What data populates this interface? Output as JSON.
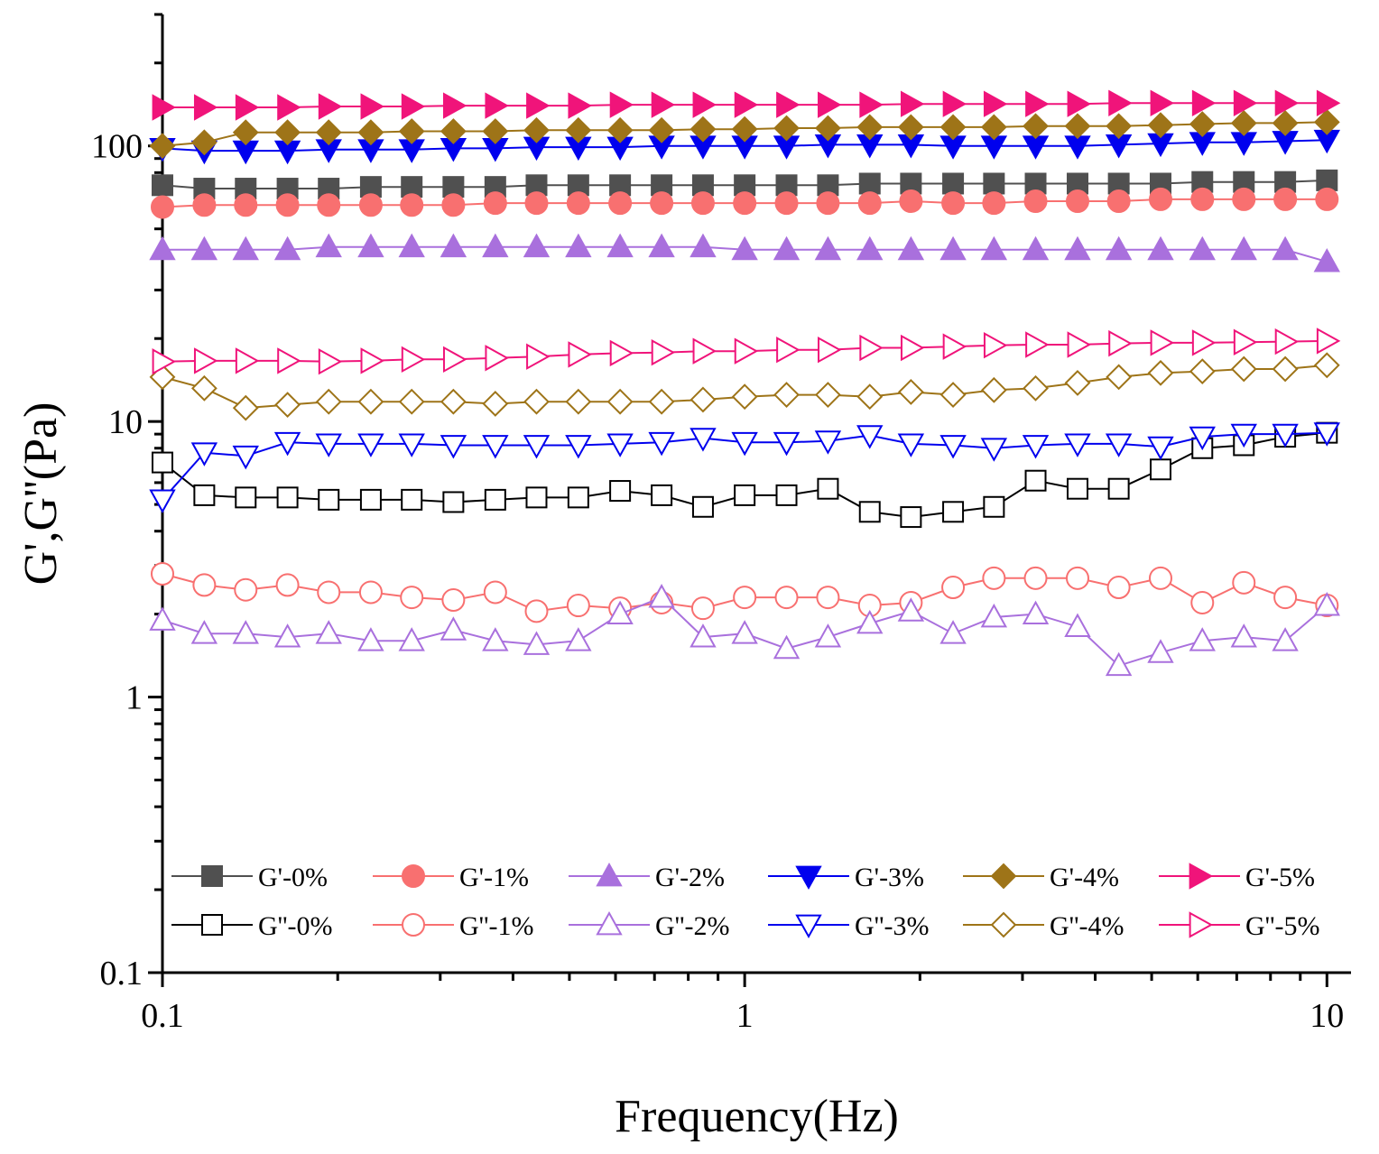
{
  "chart_data": {
    "type": "line",
    "title": "",
    "xlabel": "Frequency(Hz)",
    "ylabel": "G',G''(Pa)",
    "xscale": "log",
    "yscale": "log",
    "xlim": [
      0.1,
      11
    ],
    "ylim": [
      0.1,
      300
    ],
    "x_ticks": [
      {
        "value": 0.1,
        "label": "0.1"
      },
      {
        "value": 1,
        "label": "1"
      },
      {
        "value": 10,
        "label": "10"
      }
    ],
    "y_ticks": [
      {
        "value": 0.1,
        "label": "0.1"
      },
      {
        "value": 1,
        "label": "1"
      },
      {
        "value": 10,
        "label": "10"
      },
      {
        "value": 100,
        "label": "100"
      }
    ],
    "x": [
      0.1,
      0.118,
      0.139,
      0.164,
      0.193,
      0.228,
      0.268,
      0.316,
      0.373,
      0.439,
      0.518,
      0.611,
      0.72,
      0.848,
      1.0,
      1.18,
      1.39,
      1.64,
      1.93,
      2.28,
      2.68,
      3.16,
      3.73,
      4.39,
      5.18,
      6.11,
      7.2,
      8.48,
      10.0
    ],
    "legend": {
      "position": "bottom",
      "columns": 6
    },
    "series": [
      {
        "name": "G'-0%",
        "marker": "square",
        "filled": true,
        "color": "#505050",
        "values": [
          72,
          70,
          70,
          70,
          70,
          71,
          71,
          71,
          71,
          72,
          72,
          72,
          72,
          72,
          72,
          72,
          72,
          73,
          73,
          73,
          73,
          73,
          73,
          73,
          73,
          74,
          74,
          74,
          75
        ]
      },
      {
        "name": "G''-0%",
        "marker": "square",
        "filled": false,
        "color": "#000000",
        "values": [
          7.1,
          5.4,
          5.3,
          5.3,
          5.2,
          5.2,
          5.2,
          5.1,
          5.2,
          5.3,
          5.3,
          5.6,
          5.4,
          4.9,
          5.4,
          5.4,
          5.7,
          4.7,
          4.5,
          4.7,
          4.9,
          6.1,
          5.7,
          5.7,
          6.7,
          8.0,
          8.2,
          8.8,
          9.1
        ]
      },
      {
        "name": "G'-1%",
        "marker": "circle",
        "filled": true,
        "color": "#F87070",
        "values": [
          60,
          61,
          61,
          61,
          61,
          61,
          61,
          61,
          62,
          62,
          62,
          62,
          62,
          62,
          62,
          62,
          62,
          62,
          63,
          62,
          62,
          63,
          63,
          63,
          64,
          64,
          64,
          64,
          64
        ]
      },
      {
        "name": "G''-1%",
        "marker": "circle",
        "filled": false,
        "color": "#F87070",
        "values": [
          2.8,
          2.55,
          2.45,
          2.55,
          2.4,
          2.4,
          2.3,
          2.25,
          2.4,
          2.05,
          2.15,
          2.1,
          2.2,
          2.1,
          2.3,
          2.3,
          2.3,
          2.15,
          2.2,
          2.5,
          2.7,
          2.7,
          2.7,
          2.5,
          2.7,
          2.2,
          2.6,
          2.3,
          2.15
        ]
      },
      {
        "name": "G'-2%",
        "marker": "triangle-up",
        "filled": true,
        "color": "#A970DD",
        "values": [
          42,
          42,
          42,
          42,
          43,
          43,
          43,
          43,
          43,
          43,
          43,
          43,
          43,
          43,
          42,
          42,
          42,
          42,
          42,
          42,
          42,
          42,
          42,
          42,
          42,
          42,
          42,
          42,
          38
        ]
      },
      {
        "name": "G''-2%",
        "marker": "triangle-up",
        "filled": false,
        "color": "#A970DD",
        "values": [
          1.9,
          1.7,
          1.7,
          1.65,
          1.7,
          1.6,
          1.6,
          1.75,
          1.6,
          1.55,
          1.6,
          2.0,
          2.3,
          1.65,
          1.7,
          1.5,
          1.65,
          1.85,
          2.05,
          1.7,
          1.95,
          2.0,
          1.8,
          1.3,
          1.45,
          1.6,
          1.65,
          1.6,
          2.15
        ]
      },
      {
        "name": "G'-3%",
        "marker": "triangle-down",
        "filled": true,
        "color": "#0000EE",
        "values": [
          98,
          96,
          96,
          96,
          97,
          97,
          97,
          98,
          98,
          99,
          99,
          99,
          100,
          100,
          100,
          100,
          101,
          101,
          101,
          100,
          100,
          100,
          100,
          101,
          102,
          103,
          103,
          104,
          105
        ]
      },
      {
        "name": "G''-3%",
        "marker": "triangle-down",
        "filled": false,
        "color": "#0000EE",
        "values": [
          5.2,
          7.7,
          7.5,
          8.4,
          8.3,
          8.3,
          8.3,
          8.2,
          8.2,
          8.2,
          8.2,
          8.3,
          8.4,
          8.7,
          8.4,
          8.4,
          8.5,
          8.9,
          8.3,
          8.2,
          8.0,
          8.2,
          8.3,
          8.3,
          8.1,
          8.8,
          9.0,
          9.0,
          9.1
        ]
      },
      {
        "name": "G'-4%",
        "marker": "diamond",
        "filled": true,
        "color": "#9E7418",
        "values": [
          100,
          103,
          112,
          112,
          112,
          112,
          113,
          113,
          113,
          114,
          114,
          114,
          114,
          115,
          115,
          116,
          116,
          117,
          117,
          117,
          117,
          118,
          118,
          118,
          119,
          120,
          121,
          121,
          122
        ]
      },
      {
        "name": "G''-4%",
        "marker": "diamond",
        "filled": false,
        "color": "#9E7418",
        "values": [
          14.5,
          13.2,
          11.2,
          11.5,
          11.8,
          11.8,
          11.8,
          11.8,
          11.6,
          11.8,
          11.8,
          11.8,
          11.8,
          12.0,
          12.3,
          12.5,
          12.5,
          12.3,
          12.8,
          12.5,
          13.0,
          13.2,
          13.8,
          14.5,
          15.0,
          15.2,
          15.5,
          15.5,
          16.0
        ]
      },
      {
        "name": "G'-5%",
        "marker": "triangle-right",
        "filled": true,
        "color": "#F0147A",
        "values": [
          138,
          138,
          138,
          138,
          139,
          139,
          139,
          140,
          140,
          140,
          140,
          141,
          141,
          141,
          141,
          141,
          141,
          141,
          142,
          142,
          142,
          142,
          142,
          143,
          143,
          143,
          143,
          143,
          143
        ]
      },
      {
        "name": "G''-5%",
        "marker": "triangle-right",
        "filled": false,
        "color": "#F0147A",
        "values": [
          16.5,
          16.6,
          16.6,
          16.6,
          16.5,
          16.6,
          16.8,
          16.8,
          17.0,
          17.2,
          17.5,
          17.7,
          17.8,
          18.0,
          18.0,
          18.2,
          18.2,
          18.5,
          18.5,
          18.7,
          18.9,
          19.0,
          19.0,
          19.2,
          19.3,
          19.3,
          19.4,
          19.5,
          19.6
        ]
      }
    ]
  }
}
